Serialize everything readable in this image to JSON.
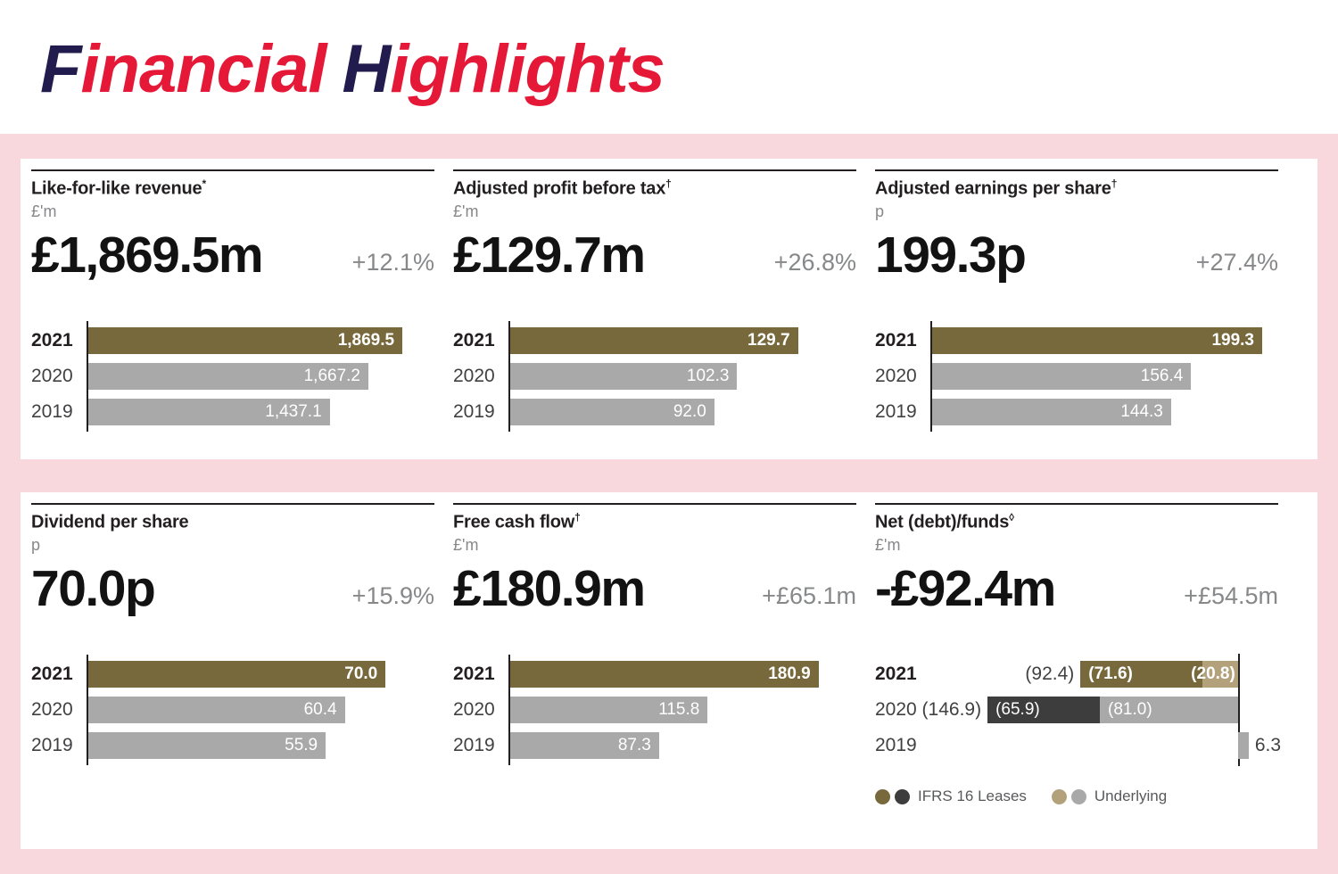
{
  "header": {
    "title_parts": [
      {
        "lead": "F",
        "rest": "inancial"
      },
      {
        "lead": "H",
        "rest": "ighlights"
      }
    ]
  },
  "colors": {
    "navy": "#221c4e",
    "red": "#e51937",
    "pink": "#f8d7dd",
    "gold": "#77693c",
    "tan": "#b2a17b",
    "charcoal": "#3d3d3d",
    "gray": "#a9a9a9"
  },
  "chart_data": [
    {
      "id": "like-for-like-revenue",
      "type": "bar",
      "title": "Like-for-like revenue",
      "title_suffix": "*",
      "unit": "£'m",
      "headline": "£1,869.5m",
      "change": "+12.1%",
      "categories": [
        "2021",
        "2020",
        "2019"
      ],
      "values": [
        1869.5,
        1667.2,
        1437.1
      ],
      "value_labels": [
        "1,869.5",
        "1,667.2",
        "1,437.1"
      ],
      "bar_colors": [
        "gold",
        "gray",
        "gray"
      ],
      "xlim": [
        0,
        2060
      ]
    },
    {
      "id": "adjusted-profit-before-tax",
      "type": "bar",
      "title": "Adjusted profit before tax",
      "title_suffix": "†",
      "unit": "£'m",
      "headline": "£129.7m",
      "change": "+26.8%",
      "categories": [
        "2021",
        "2020",
        "2019"
      ],
      "values": [
        129.7,
        102.3,
        92.0
      ],
      "value_labels": [
        "129.7",
        "102.3",
        "92.0"
      ],
      "bar_colors": [
        "gold",
        "gray",
        "gray"
      ],
      "xlim": [
        0,
        156
      ]
    },
    {
      "id": "adjusted-earnings-per-share",
      "type": "bar",
      "title": "Adjusted earnings per share",
      "title_suffix": "†",
      "unit": "p",
      "headline": "199.3p",
      "change": "+27.4%",
      "categories": [
        "2021",
        "2020",
        "2019"
      ],
      "values": [
        199.3,
        156.4,
        144.3
      ],
      "value_labels": [
        "199.3",
        "156.4",
        "144.3"
      ],
      "bar_colors": [
        "gold",
        "gray",
        "gray"
      ],
      "xlim": [
        0,
        209
      ]
    },
    {
      "id": "dividend-per-share",
      "type": "bar",
      "title": "Dividend per share",
      "title_suffix": "",
      "unit": "p",
      "headline": "70.0p",
      "change": "+15.9%",
      "categories": [
        "2021",
        "2020",
        "2019"
      ],
      "values": [
        70.0,
        60.4,
        55.9
      ],
      "value_labels": [
        "70.0",
        "60.4",
        "55.9"
      ],
      "bar_colors": [
        "gold",
        "gray",
        "gray"
      ],
      "xlim": [
        0,
        81.5
      ]
    },
    {
      "id": "free-cash-flow",
      "type": "bar",
      "title": "Free cash flow",
      "title_suffix": "†",
      "unit": "£'m",
      "headline": "£180.9m",
      "change": "+£65.1m",
      "categories": [
        "2021",
        "2020",
        "2019"
      ],
      "values": [
        180.9,
        115.8,
        87.3
      ],
      "value_labels": [
        "180.9",
        "115.8",
        "87.3"
      ],
      "bar_colors": [
        "gold",
        "gray",
        "gray"
      ],
      "xlim": [
        0,
        203
      ]
    },
    {
      "id": "net-debt-funds",
      "type": "stacked-bar",
      "title": "Net (debt)/funds",
      "title_suffix": "◊",
      "unit": "£'m",
      "headline": "-£92.4m",
      "change": "+£54.5m",
      "categories": [
        "2021",
        "2020",
        "2019"
      ],
      "axis_left_pct": 90,
      "pct_per_unit": 0.4228,
      "rows": [
        {
          "year": "2021",
          "bold": true,
          "direction": "negative",
          "total_label": "(92.4)",
          "total": -92.4,
          "segments": [
            {
              "value": 71.6,
              "label": "(71.6)",
              "color": "gold",
              "bold": true,
              "label_align": "left"
            },
            {
              "value": 20.8,
              "label": "(20.8)",
              "color": "tan",
              "bold": true,
              "label_align": "right"
            }
          ]
        },
        {
          "year": "2020",
          "bold": false,
          "direction": "negative",
          "total_label": "(146.9)",
          "total": -146.9,
          "segments": [
            {
              "value": 65.9,
              "label": "(65.9)",
              "color": "charcoal",
              "bold": false,
              "label_align": "left"
            },
            {
              "value": 81.0,
              "label": "(81.0)",
              "color": "gray",
              "bold": false,
              "label_align": "left"
            }
          ]
        },
        {
          "year": "2019",
          "bold": false,
          "direction": "positive",
          "total_label": "",
          "total": 6.3,
          "segments": [
            {
              "value": 6.3,
              "label": "6.3",
              "color": "gray",
              "bold": false,
              "label_align": "outside"
            }
          ]
        }
      ],
      "legend": [
        {
          "label": "IFRS 16 Leases",
          "dots": [
            "gold",
            "charcoal"
          ]
        },
        {
          "label": "Underlying",
          "dots": [
            "tan",
            "gray"
          ]
        }
      ]
    }
  ]
}
